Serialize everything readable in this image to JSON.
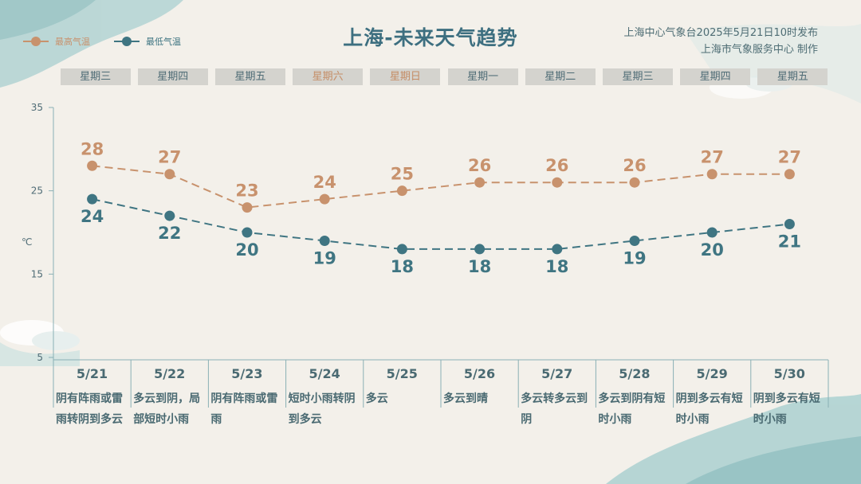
{
  "title": "上海-未来天气趋势",
  "source": {
    "line1": "上海中心气象台2025年5月21日10时发布",
    "line2": "上海市气象服务中心 制作"
  },
  "legend": {
    "high": "最高气温",
    "low": "最低气温"
  },
  "colors": {
    "high": "#c8926d",
    "low": "#3f7582",
    "axis": "#8ab0b5",
    "text": "#4a6a72"
  },
  "weekdays": [
    {
      "label": "星期三",
      "weekend": false
    },
    {
      "label": "星期四",
      "weekend": false
    },
    {
      "label": "星期五",
      "weekend": false
    },
    {
      "label": "星期六",
      "weekend": true
    },
    {
      "label": "星期日",
      "weekend": true
    },
    {
      "label": "星期一",
      "weekend": false
    },
    {
      "label": "星期二",
      "weekend": false
    },
    {
      "label": "星期三",
      "weekend": false
    },
    {
      "label": "星期四",
      "weekend": false
    },
    {
      "label": "星期五",
      "weekend": false
    }
  ],
  "y_unit": "℃",
  "chart_data": {
    "type": "line",
    "x": [
      "5/21",
      "5/22",
      "5/23",
      "5/24",
      "5/25",
      "5/26",
      "5/27",
      "5/28",
      "5/29",
      "5/30"
    ],
    "series": [
      {
        "name": "最高气温",
        "values": [
          28,
          27,
          23,
          24,
          25,
          26,
          26,
          26,
          27,
          27
        ]
      },
      {
        "name": "最低气温",
        "values": [
          24,
          22,
          20,
          19,
          18,
          18,
          18,
          19,
          20,
          21
        ]
      }
    ],
    "yticks": [
      "35",
      "25",
      "15",
      "5"
    ],
    "ylim": [
      5,
      35
    ],
    "grid": false,
    "legend_position": "top-left"
  },
  "days": [
    {
      "date": "5/21",
      "desc": "阴有阵雨或雷雨转阴到多云"
    },
    {
      "date": "5/22",
      "desc": "多云到阴，局部短时小雨"
    },
    {
      "date": "5/23",
      "desc": "阴有阵雨或雷雨"
    },
    {
      "date": "5/24",
      "desc": "短时小雨转阴到多云"
    },
    {
      "date": "5/25",
      "desc": "多云"
    },
    {
      "date": "5/26",
      "desc": "多云到晴"
    },
    {
      "date": "5/27",
      "desc": "多云转多云到阴"
    },
    {
      "date": "5/28",
      "desc": "多云到阴有短时小雨"
    },
    {
      "date": "5/29",
      "desc": "阴到多云有短时小雨"
    },
    {
      "date": "5/30",
      "desc": "阴到多云有短时小雨"
    }
  ]
}
